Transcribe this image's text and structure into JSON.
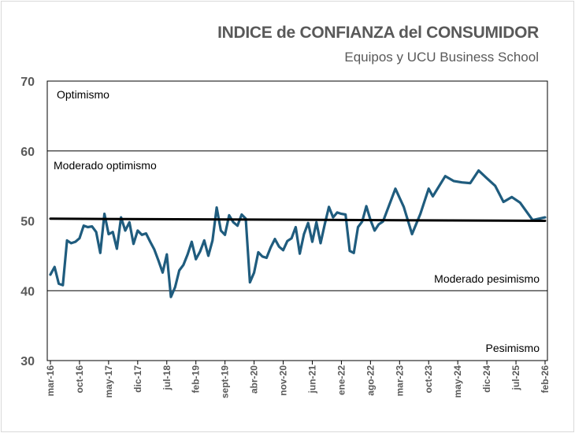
{
  "chart_data": {
    "type": "line",
    "title": "INDICE de CONFIANZA del CONSUMIDOR",
    "subtitle": "Equipos y UCU Business School",
    "xlabel": "",
    "ylabel": "",
    "ylim": [
      30,
      70
    ],
    "yticks": [
      "70",
      "60",
      "50",
      "40",
      "30"
    ],
    "xlim": [
      "2016-03",
      "2026-02"
    ],
    "xticks": [
      "mar-16",
      "oct-16",
      "may-17",
      "dic-17",
      "jul-18",
      "feb-19",
      "sept-19",
      "abr-20",
      "nov-20",
      "jun-21",
      "ene-22",
      "ago-22",
      "mar-23",
      "oct-23",
      "may-24",
      "dic-24",
      "jul-25",
      "feb-26"
    ],
    "grid": "horizontal at 40, 60",
    "bands": [
      {
        "label": "Optimismo",
        "range": [
          60,
          70
        ]
      },
      {
        "label": "Moderado optimismo",
        "range": [
          50,
          60
        ]
      },
      {
        "label": "Moderado pesimismo",
        "range": [
          40,
          50
        ]
      },
      {
        "label": "Pesimismo",
        "range": [
          30,
          40
        ]
      }
    ],
    "series": [
      {
        "color": "#1f5c7e",
        "points": [
          [
            "2016-03",
            42.3
          ],
          [
            "2016-04",
            43.4
          ],
          [
            "2016-05",
            41.0
          ],
          [
            "2016-06",
            40.8
          ],
          [
            "2016-07",
            47.2
          ],
          [
            "2016-08",
            46.8
          ],
          [
            "2016-09",
            47.0
          ],
          [
            "2016-10",
            47.5
          ],
          [
            "2016-11",
            49.3
          ],
          [
            "2016-12",
            49.1
          ],
          [
            "2017-01",
            49.2
          ],
          [
            "2017-02",
            48.4
          ],
          [
            "2017-03",
            45.4
          ],
          [
            "2017-04",
            51.0
          ],
          [
            "2017-05",
            48.1
          ],
          [
            "2017-06",
            48.4
          ],
          [
            "2017-07",
            46.0
          ],
          [
            "2017-08",
            50.5
          ],
          [
            "2017-09",
            48.6
          ],
          [
            "2017-10",
            49.8
          ],
          [
            "2017-11",
            46.7
          ],
          [
            "2017-12",
            48.6
          ],
          [
            "2018-01",
            48.0
          ],
          [
            "2018-02",
            48.2
          ],
          [
            "2018-03",
            47.0
          ],
          [
            "2018-04",
            45.9
          ],
          [
            "2018-05",
            44.3
          ],
          [
            "2018-06",
            42.6
          ],
          [
            "2018-07",
            45.2
          ],
          [
            "2018-08",
            39.1
          ],
          [
            "2018-09",
            40.5
          ],
          [
            "2018-10",
            42.9
          ],
          [
            "2018-11",
            43.7
          ],
          [
            "2018-12",
            45.2
          ],
          [
            "2019-01",
            47.0
          ],
          [
            "2019-02",
            44.5
          ],
          [
            "2019-03",
            45.6
          ],
          [
            "2019-04",
            47.2
          ],
          [
            "2019-05",
            45.0
          ],
          [
            "2019-06",
            47.2
          ],
          [
            "2019-07",
            51.9
          ],
          [
            "2019-08",
            48.6
          ],
          [
            "2019-09",
            48.0
          ],
          [
            "2019-10",
            50.8
          ],
          [
            "2019-11",
            49.8
          ],
          [
            "2019-12",
            49.3
          ],
          [
            "2020-01",
            50.9
          ],
          [
            "2020-02",
            50.3
          ],
          [
            "2020-03",
            41.2
          ],
          [
            "2020-04",
            42.6
          ],
          [
            "2020-05",
            45.5
          ],
          [
            "2020-06",
            44.9
          ],
          [
            "2020-07",
            44.7
          ],
          [
            "2020-08",
            46.2
          ],
          [
            "2020-09",
            47.4
          ],
          [
            "2020-10",
            46.3
          ],
          [
            "2020-11",
            45.8
          ],
          [
            "2020-12",
            47.1
          ],
          [
            "2021-01",
            47.5
          ],
          [
            "2021-02",
            49.1
          ],
          [
            "2021-03",
            45.3
          ],
          [
            "2021-04",
            48.1
          ],
          [
            "2021-05",
            49.7
          ],
          [
            "2021-06",
            47.0
          ],
          [
            "2021-07",
            49.8
          ],
          [
            "2021-08",
            46.8
          ],
          [
            "2021-09",
            49.5
          ],
          [
            "2021-10",
            52.0
          ],
          [
            "2021-11",
            50.5
          ],
          [
            "2021-12",
            51.2
          ],
          [
            "2022-01",
            51.0
          ],
          [
            "2022-02",
            50.9
          ],
          [
            "2022-03",
            45.7
          ],
          [
            "2022-04",
            45.4
          ],
          [
            "2022-05",
            49.1
          ],
          [
            "2022-06",
            49.9
          ],
          [
            "2022-07",
            52.1
          ],
          [
            "2022-08",
            50.1
          ],
          [
            "2022-09",
            48.6
          ],
          [
            "2022-10",
            49.5
          ],
          [
            "2022-11",
            49.9
          ],
          [
            "2023-02",
            54.6
          ],
          [
            "2023-04",
            52.0
          ],
          [
            "2023-06",
            48.1
          ],
          [
            "2023-08",
            51.0
          ],
          [
            "2023-10",
            54.6
          ],
          [
            "2023-11",
            53.5
          ],
          [
            "2024-02",
            56.4
          ],
          [
            "2024-04",
            55.7
          ],
          [
            "2024-06",
            55.5
          ],
          [
            "2024-08",
            55.4
          ],
          [
            "2024-10",
            57.2
          ],
          [
            "2024-12",
            56.1
          ],
          [
            "2025-02",
            55.0
          ],
          [
            "2025-04",
            52.7
          ],
          [
            "2025-06",
            53.4
          ],
          [
            "2025-08",
            52.6
          ],
          [
            "2025-11",
            50.1
          ],
          [
            "2026-02",
            50.5
          ]
        ]
      },
      {
        "type": "trend",
        "color": "#000000",
        "points": [
          [
            "2016-03",
            50.3
          ],
          [
            "2026-02",
            50.0
          ]
        ]
      }
    ]
  }
}
